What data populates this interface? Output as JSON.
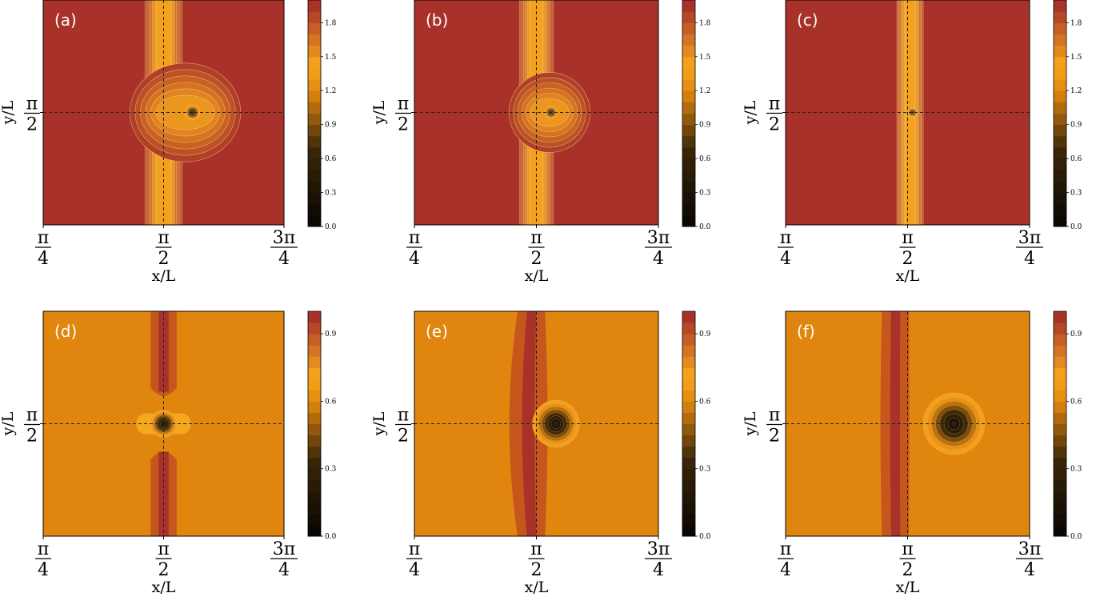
{
  "figure": {
    "x_tick_labels": [
      {
        "num": "π",
        "den": "4"
      },
      {
        "num": "π",
        "den": "2"
      },
      {
        "num": "3π",
        "den": "4"
      }
    ],
    "y_tick_label": {
      "num": "π",
      "den": "2"
    },
    "xlabel": "x/L",
    "ylabel": "y/L"
  },
  "palette": {
    "dark": "#0b0703",
    "mid": "#e0860f",
    "bright": "#f7a71c",
    "red": "#a8322a",
    "contour": "#ffd27a",
    "dashed": "#222222"
  },
  "chart_data": [
    {
      "type": "heatmap",
      "panel_label": "(a)",
      "xlim": [
        "π/4",
        "3π/4"
      ],
      "colorbar": {
        "ticks": [
          "0.0",
          "0.3",
          "0.6",
          "0.9",
          "1.2",
          "1.5",
          "1.8"
        ],
        "max": 2.0
      },
      "field": {
        "background": 2.0,
        "band_x": 0.5,
        "band_width": 0.05,
        "vortex_x": 0.62,
        "vortex_y": 0.5,
        "vortex_radius": 0.05,
        "lobe": true
      }
    },
    {
      "type": "heatmap",
      "panel_label": "(b)",
      "xlim": [
        "π/4",
        "3π/4"
      ],
      "colorbar": {
        "ticks": [
          "0.0",
          "0.3",
          "0.6",
          "0.9",
          "1.2",
          "1.5",
          "1.8"
        ],
        "max": 2.0
      },
      "field": {
        "background": 2.0,
        "band_x": 0.5,
        "band_width": 0.045,
        "vortex_x": 0.56,
        "vortex_y": 0.5,
        "vortex_radius": 0.04,
        "lobe": true
      }
    },
    {
      "type": "heatmap",
      "panel_label": "(c)",
      "xlim": [
        "π/4",
        "3π/4"
      ],
      "colorbar": {
        "ticks": [
          "0.0",
          "0.3",
          "0.6",
          "0.9",
          "1.2",
          "1.5",
          "1.8"
        ],
        "max": 2.0
      },
      "field": {
        "background": 2.0,
        "band_x": 0.51,
        "band_width": 0.035,
        "vortex_x": 0.52,
        "vortex_y": 0.5,
        "vortex_radius": 0.03,
        "lobe": false
      }
    },
    {
      "type": "heatmap",
      "panel_label": "(d)",
      "xlim": [
        "π/4",
        "3π/4"
      ],
      "colorbar": {
        "ticks": [
          "0.0",
          "0.3",
          "0.6",
          "0.9"
        ],
        "max": 1.0
      },
      "field": {
        "background": 0.66,
        "band_x": 0.5,
        "band_width": 0.06,
        "vortex_x": 0.5,
        "vortex_y": 0.5,
        "vortex_radius": 0.05
      }
    },
    {
      "type": "heatmap",
      "panel_label": "(e)",
      "xlim": [
        "π/4",
        "3π/4"
      ],
      "colorbar": {
        "ticks": [
          "0.0",
          "0.3",
          "0.6",
          "0.9"
        ],
        "max": 1.0
      },
      "field": {
        "background": 0.66,
        "band_x": 0.48,
        "band_width": 0.05,
        "vortex_x": 0.58,
        "vortex_y": 0.5,
        "vortex_radius": 0.09
      }
    },
    {
      "type": "heatmap",
      "panel_label": "(f)",
      "xlim": [
        "π/4",
        "3π/4"
      ],
      "colorbar": {
        "ticks": [
          "0.0",
          "0.3",
          "0.6",
          "0.9"
        ],
        "max": 1.0
      },
      "field": {
        "background": 0.66,
        "band_x": 0.45,
        "band_width": 0.05,
        "vortex_x": 0.69,
        "vortex_y": 0.5,
        "vortex_radius": 0.12
      }
    }
  ]
}
